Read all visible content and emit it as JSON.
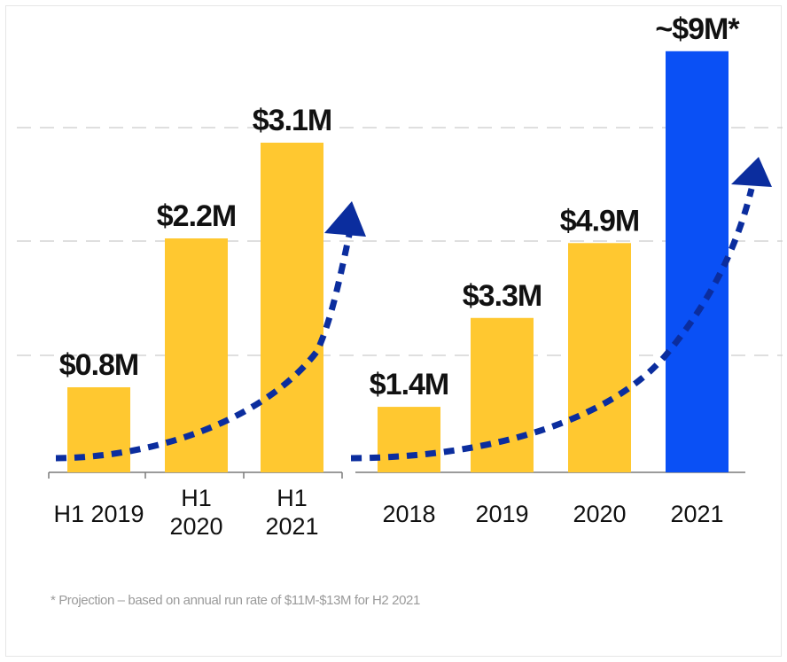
{
  "chart_data": [
    {
      "type": "bar",
      "categories": [
        "H1 2019",
        "H1 2020",
        "H1 2021"
      ],
      "values": [
        0.8,
        2.2,
        3.1
      ],
      "data_labels": [
        "$0.8M",
        "$2.2M",
        "$3.1M"
      ],
      "colors": [
        "#FFC830",
        "#FFC830",
        "#FFC830"
      ],
      "title": "",
      "xlabel": "",
      "ylabel": "",
      "grid": true,
      "trend_arrow": "dotted curved arrow, dark blue"
    },
    {
      "type": "bar",
      "categories": [
        "2018",
        "2019",
        "2020",
        "2021"
      ],
      "values": [
        1.4,
        3.3,
        4.9,
        9
      ],
      "data_labels": [
        "$1.4M",
        "$3.3M",
        "$4.9M",
        "~$9M*"
      ],
      "colors": [
        "#FFC830",
        "#FFC830",
        "#FFC830",
        "#0A50F5"
      ],
      "title": "",
      "xlabel": "",
      "ylabel": "",
      "grid": true,
      "trend_arrow": "dotted curved arrow, dark blue"
    }
  ],
  "colors": {
    "bar": "#FFC830",
    "projection_bar": "#0A50F5",
    "arrow": "#0B2D9E",
    "grid": "#cccccc",
    "axis": "#7a7a7a"
  },
  "footnote": "* Projection – based on annual run rate of $11M-$13M for H2 2021"
}
